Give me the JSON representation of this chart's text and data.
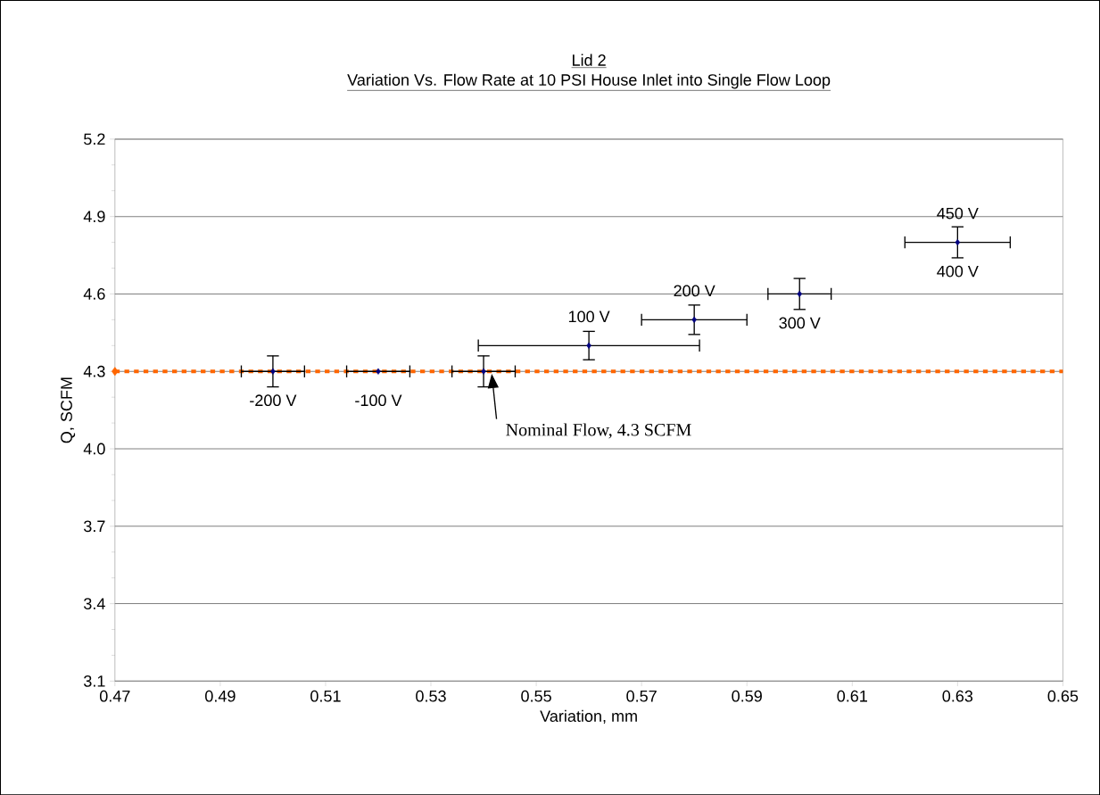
{
  "chart_data": {
    "type": "scatter",
    "title": "Lid 2",
    "subtitle": "Variation Vs. Flow Rate at 10 PSI House Inlet into Single Flow Loop",
    "xlabel": "Variation, mm",
    "ylabel": "Q, SCFM",
    "xlim": [
      0.47,
      0.65
    ],
    "xticks": [
      0.47,
      0.49,
      0.51,
      0.53,
      0.55,
      0.57,
      0.59,
      0.61,
      0.63,
      0.65
    ],
    "ylim": [
      3.1,
      5.2
    ],
    "yticks": [
      3.1,
      3.4,
      3.7,
      {
        "value": 4,
        "label": "4.0"
      },
      4.3,
      4.6,
      4.9,
      5.2
    ],
    "grid": "y",
    "marker": "diamond",
    "series": [
      {
        "color": "#000080",
        "x": [
          0.5,
          0.52,
          0.54,
          0.56,
          0.58,
          0.6,
          0.63
        ],
        "values": [
          4.3,
          4.3,
          4.3,
          4.4,
          4.5,
          4.6,
          4.8
        ],
        "errors": [
          0.06,
          null,
          0.06,
          0.055,
          0.057,
          0.06,
          0.06
        ],
        "xerrors": [
          0.006,
          0.006,
          0.006,
          0.021,
          0.01,
          0.006,
          0.01
        ]
      },
      {
        "color": "#ff6600",
        "x": [
          0.47
        ],
        "values": [
          4.3
        ]
      }
    ],
    "ref_lines": [
      {
        "axis": "y",
        "value": 4.3,
        "color": "#ff6600",
        "line_style": "dotted"
      }
    ],
    "annotations": [
      {
        "text": "-200 V",
        "x": 0.5,
        "y": 4.3
      },
      {
        "text": "-100 V",
        "x": 0.52,
        "y": 4.3
      },
      {
        "text": "100 V",
        "x": 0.56,
        "y": 4.4
      },
      {
        "text": "200 V",
        "x": 0.58,
        "y": 4.5
      },
      {
        "text": "300 V",
        "x": 0.6,
        "y": 4.6
      },
      {
        "text": "450 V",
        "x": 0.63,
        "y": 4.8
      },
      {
        "text": "400 V",
        "x": 0.63,
        "y": 4.8
      },
      "Nominal Flow, 4.3 SCFM"
    ]
  }
}
